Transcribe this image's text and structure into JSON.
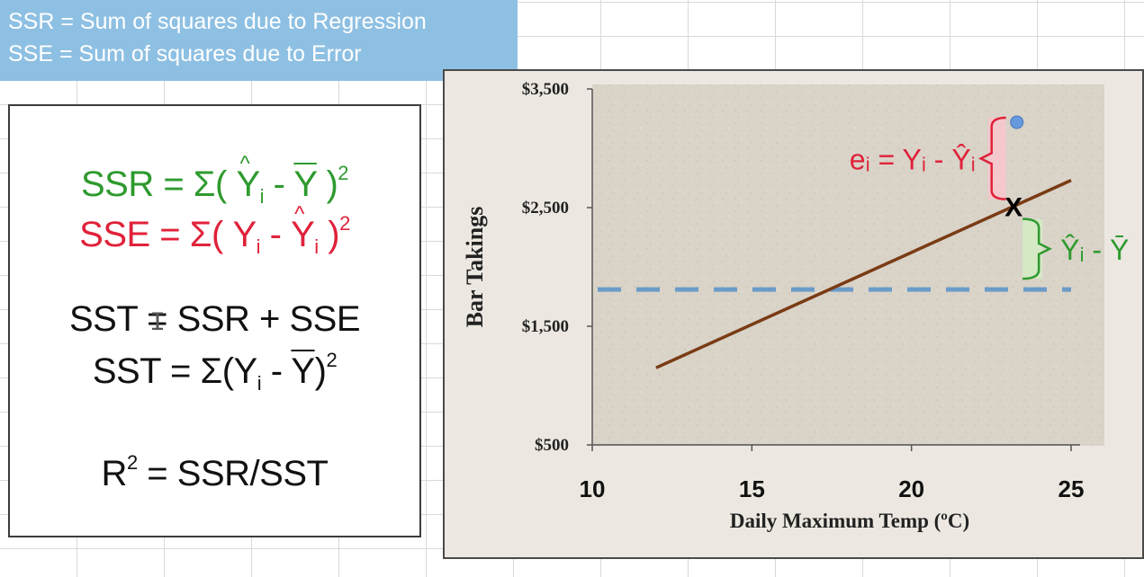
{
  "definitions": {
    "ssr": "SSR = Sum of squares due to Regression",
    "sse": "SSE = Sum of squares due to Error"
  },
  "formulas": {
    "ssr": "SSR = Σ( Ŷi - Ȳ )²",
    "sse": "SSE = Σ( Yi - Ŷi )²",
    "sst_sum": "SST = SSR + SSE",
    "sst_def": "SST = Σ(Yi - Ȳ)²",
    "r2": "R² = SSR/SST"
  },
  "colors": {
    "ssr": "#2e9a2e",
    "sse": "#e0223a",
    "regression_line": "#7a3b14",
    "mean_line": "#6b9bc8",
    "point": "#6699dd"
  },
  "chart_data": {
    "type": "line",
    "xlabel": "Daily Maximum Temp (ºC)",
    "ylabel": "Bar Takings",
    "xlim": [
      10,
      25
    ],
    "ylim": [
      500,
      3500
    ],
    "x_ticks": [
      "10",
      "15",
      "20",
      "25"
    ],
    "y_ticks": [
      "$3,500",
      "$2,500",
      "$1,500",
      "$500"
    ],
    "y_tick_values": [
      3500,
      2500,
      1500,
      500
    ],
    "x_tick_values": [
      10,
      15,
      20,
      25
    ],
    "regression_line": {
      "x": [
        12,
        25
      ],
      "y": [
        1150,
        2730
      ]
    },
    "mean_line": {
      "y": 1810
    },
    "observed_point": {
      "x": 23.3,
      "y": 3220
    },
    "predicted_point": {
      "x": 23.2,
      "y": 2510,
      "label": "X"
    },
    "annotations": {
      "error": "eᵢ = Yᵢ - Ŷᵢ",
      "regression": "Ŷᵢ - Ȳ"
    }
  }
}
